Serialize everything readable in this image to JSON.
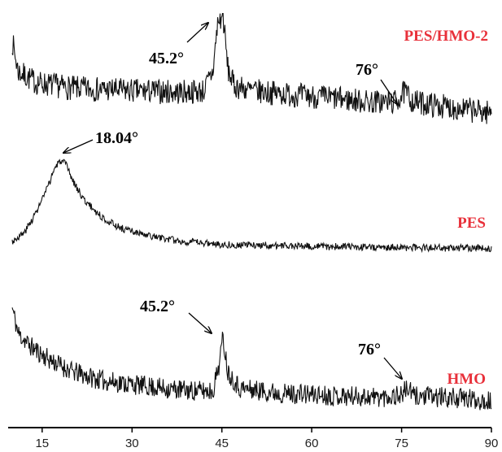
{
  "colors": {
    "series_label": "#e8303a",
    "trace": "#111111",
    "axis": "#000000",
    "background": "#ffffff"
  },
  "chart_data": {
    "type": "line",
    "title": "",
    "xlabel": "",
    "ylabel": "",
    "xlim": [
      10,
      90
    ],
    "x_ticks": [
      "15",
      "30",
      "45",
      "60",
      "75",
      "90"
    ],
    "y_ticks": false,
    "grid": false,
    "layout": "stacked-offset",
    "series": [
      {
        "name": "PES/HMO-2",
        "anchors": [
          [
            10,
            0.82
          ],
          [
            11,
            0.6
          ],
          [
            14,
            0.52
          ],
          [
            20,
            0.48
          ],
          [
            30,
            0.46
          ],
          [
            38,
            0.45
          ],
          [
            42,
            0.46
          ],
          [
            43.5,
            0.6
          ],
          [
            44.3,
            0.95
          ],
          [
            45.2,
            1.0
          ],
          [
            46,
            0.62
          ],
          [
            47,
            0.5
          ],
          [
            50,
            0.46
          ],
          [
            60,
            0.42
          ],
          [
            70,
            0.38
          ],
          [
            74,
            0.38
          ],
          [
            75.5,
            0.45
          ],
          [
            77,
            0.38
          ],
          [
            85,
            0.33
          ],
          [
            90,
            0.3
          ]
        ],
        "noise": 0.09,
        "seed": 7
      },
      {
        "name": "PES",
        "anchors": [
          [
            10,
            0.12
          ],
          [
            12,
            0.2
          ],
          [
            14,
            0.4
          ],
          [
            16,
            0.65
          ],
          [
            17,
            0.82
          ],
          [
            18.04,
            0.9
          ],
          [
            19,
            0.86
          ],
          [
            20,
            0.72
          ],
          [
            22,
            0.52
          ],
          [
            25,
            0.35
          ],
          [
            28,
            0.25
          ],
          [
            32,
            0.18
          ],
          [
            38,
            0.12
          ],
          [
            45,
            0.09
          ],
          [
            60,
            0.07
          ],
          [
            75,
            0.06
          ],
          [
            90,
            0.05
          ]
        ],
        "noise": 0.035,
        "seed": 3
      },
      {
        "name": "HMO",
        "anchors": [
          [
            10,
            0.85
          ],
          [
            11,
            0.65
          ],
          [
            13,
            0.55
          ],
          [
            16,
            0.45
          ],
          [
            20,
            0.35
          ],
          [
            25,
            0.28
          ],
          [
            30,
            0.25
          ],
          [
            35,
            0.22
          ],
          [
            40,
            0.2
          ],
          [
            43.5,
            0.2
          ],
          [
            44.5,
            0.4
          ],
          [
            45.2,
            0.62
          ],
          [
            46,
            0.35
          ],
          [
            48,
            0.22
          ],
          [
            55,
            0.18
          ],
          [
            65,
            0.16
          ],
          [
            72,
            0.15
          ],
          [
            75,
            0.17
          ],
          [
            76,
            0.22
          ],
          [
            77,
            0.16
          ],
          [
            85,
            0.14
          ],
          [
            90,
            0.12
          ]
        ],
        "noise": 0.08,
        "seed": 11
      }
    ],
    "annotations": [
      {
        "text": "45.2°",
        "series": "PES/HMO-2",
        "x": 45.2
      },
      {
        "text": "76°",
        "series": "PES/HMO-2",
        "x": 76
      },
      {
        "text": "18.04°",
        "series": "PES",
        "x": 18.04
      },
      {
        "text": "45.2°",
        "series": "HMO",
        "x": 45.2
      },
      {
        "text": "76°",
        "series": "HMO",
        "x": 76
      }
    ]
  }
}
